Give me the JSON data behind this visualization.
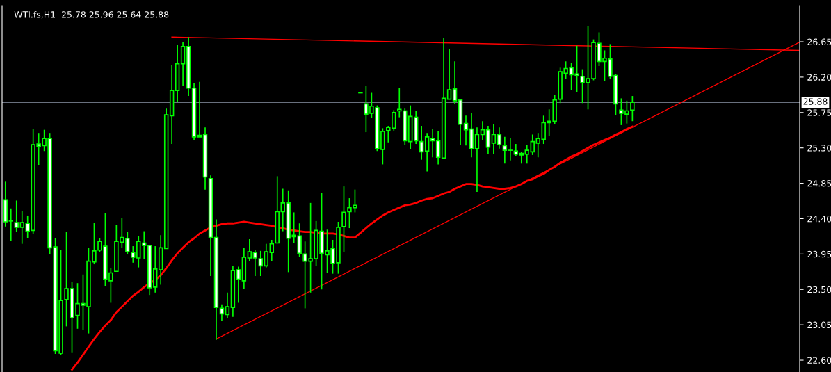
{
  "chart_data": {
    "type": "candlestick",
    "title": "WTI.fs,H1  25.78 25.96 25.64 25.88",
    "categories": [
      null,
      null,
      null,
      null,
      null,
      null,
      null,
      null,
      null,
      null,
      null,
      null,
      null,
      null,
      null,
      null,
      null,
      null,
      null,
      null,
      null,
      null,
      null,
      null,
      null,
      null,
      null,
      null,
      null,
      null,
      null,
      null,
      null,
      null,
      null,
      null,
      null,
      null,
      null,
      null,
      null,
      null,
      null,
      null,
      null,
      null,
      null,
      null,
      null,
      null,
      null,
      null,
      null,
      null,
      null,
      null,
      null,
      null,
      null,
      null,
      null,
      null,
      null,
      null,
      null,
      null,
      null,
      null,
      null,
      null,
      null,
      null,
      null,
      null,
      null,
      null,
      null,
      null,
      null,
      null,
      null,
      null,
      null,
      null,
      null,
      null,
      null,
      null,
      null,
      null,
      null,
      null,
      null,
      null,
      null,
      null,
      null,
      null,
      null,
      null,
      null,
      null,
      null,
      null,
      null,
      null,
      null,
      null,
      null,
      null,
      null,
      null,
      null,
      null,
      null,
      null,
      null,
      null,
      null,
      null,
      null,
      null,
      null,
      null,
      null,
      null,
      null,
      null,
      null,
      null,
      null,
      null,
      null,
      null,
      null,
      null,
      null,
      null,
      null,
      null,
      null,
      null,
      null,
      null
    ],
    "series": [
      {
        "type": "candlestick",
        "color": "#00ff00",
        "ohlc": [
          [
            24.64,
            24.87,
            24.3,
            24.36
          ],
          [
            24.37,
            24.53,
            24.12,
            24.37
          ],
          [
            24.35,
            24.63,
            24.23,
            24.29
          ],
          [
            24.29,
            24.5,
            24.08,
            24.35
          ],
          [
            24.34,
            24.44,
            24.15,
            24.24
          ],
          [
            24.25,
            25.54,
            24.21,
            25.34
          ],
          [
            25.35,
            25.49,
            25.08,
            25.32
          ],
          [
            25.33,
            25.53,
            25.26,
            25.42
          ],
          [
            25.42,
            25.49,
            23.95,
            24.03
          ],
          [
            24.04,
            24.15,
            22.68,
            22.72
          ],
          [
            22.69,
            24.0,
            22.67,
            23.36
          ],
          [
            23.37,
            24.23,
            23.03,
            23.51
          ],
          [
            23.51,
            23.6,
            22.7,
            23.14
          ],
          [
            23.17,
            23.58,
            23.0,
            23.32
          ],
          [
            23.32,
            23.69,
            22.98,
            23.3
          ],
          [
            23.28,
            24.03,
            22.94,
            23.86
          ],
          [
            23.85,
            24.35,
            23.82,
            23.99
          ],
          [
            24.0,
            24.15,
            23.98,
            24.11
          ],
          [
            24.05,
            24.47,
            23.54,
            23.63
          ],
          [
            23.61,
            23.77,
            23.33,
            23.71
          ],
          [
            23.73,
            24.32,
            23.73,
            24.11
          ],
          [
            24.1,
            24.41,
            24.03,
            24.16
          ],
          [
            24.15,
            24.23,
            23.95,
            23.98
          ],
          [
            23.97,
            24.05,
            23.84,
            23.91
          ],
          [
            23.9,
            24.18,
            23.78,
            24.11
          ],
          [
            24.09,
            24.24,
            23.89,
            24.06
          ],
          [
            24.06,
            24.06,
            23.43,
            23.52
          ],
          [
            23.53,
            24.05,
            23.46,
            23.76
          ],
          [
            23.75,
            24.19,
            23.56,
            24.03
          ],
          [
            24.02,
            25.8,
            24.02,
            25.72
          ],
          [
            25.71,
            26.35,
            25.35,
            26.03
          ],
          [
            26.03,
            26.61,
            25.89,
            26.37
          ],
          [
            26.37,
            26.65,
            26.09,
            26.59
          ],
          [
            26.59,
            26.71,
            25.96,
            26.06
          ],
          [
            26.06,
            26.12,
            25.4,
            25.44
          ],
          [
            25.46,
            26.14,
            25.44,
            25.44
          ],
          [
            25.47,
            25.56,
            24.77,
            24.93
          ],
          [
            24.91,
            24.95,
            23.67,
            24.16
          ],
          [
            24.16,
            24.39,
            22.86,
            23.27
          ],
          [
            23.26,
            23.31,
            23.1,
            23.19
          ],
          [
            23.18,
            23.46,
            23.14,
            23.28
          ],
          [
            23.27,
            23.8,
            23.15,
            23.74
          ],
          [
            23.75,
            23.79,
            23.33,
            23.63
          ],
          [
            23.61,
            24.03,
            23.51,
            23.91
          ],
          [
            23.9,
            24.14,
            23.86,
            23.98
          ],
          [
            23.97,
            24.0,
            23.67,
            23.9
          ],
          [
            23.89,
            23.99,
            23.67,
            23.8
          ],
          [
            23.8,
            24.08,
            23.78,
            23.98
          ],
          [
            23.97,
            24.13,
            23.86,
            24.08
          ],
          [
            24.09,
            24.94,
            24.09,
            24.49
          ],
          [
            24.49,
            24.78,
            24.24,
            24.6
          ],
          [
            24.6,
            24.76,
            23.72,
            24.15
          ],
          [
            24.17,
            24.48,
            24.09,
            24.19
          ],
          [
            24.18,
            24.34,
            23.91,
            23.96
          ],
          [
            23.95,
            24.11,
            23.26,
            23.86
          ],
          [
            23.86,
            24.6,
            23.46,
            23.89
          ],
          [
            23.89,
            24.37,
            23.8,
            24.25
          ],
          [
            24.24,
            24.73,
            23.5,
            23.96
          ],
          [
            23.94,
            24.26,
            23.71,
            23.99
          ],
          [
            24.02,
            24.13,
            23.7,
            23.83
          ],
          [
            23.84,
            24.36,
            23.7,
            24.29
          ],
          [
            24.3,
            24.81,
            23.98,
            24.48
          ],
          [
            24.49,
            24.66,
            24.28,
            24.54
          ],
          [
            24.54,
            24.77,
            24.48,
            24.57
          ],
          [
            26.0,
            26.0,
            26.0,
            26.0
          ],
          [
            25.86,
            26.09,
            25.5,
            25.73
          ],
          [
            25.74,
            26.0,
            25.68,
            25.83
          ],
          [
            25.81,
            25.84,
            25.26,
            25.29
          ],
          [
            25.28,
            25.55,
            25.09,
            25.51
          ],
          [
            25.52,
            25.58,
            25.37,
            25.56
          ],
          [
            25.55,
            25.78,
            25.52,
            25.75
          ],
          [
            25.77,
            26.06,
            25.69,
            25.79
          ],
          [
            25.77,
            25.8,
            25.34,
            25.39
          ],
          [
            25.38,
            25.84,
            25.28,
            25.7
          ],
          [
            25.69,
            25.77,
            25.35,
            25.39
          ],
          [
            25.38,
            25.58,
            25.15,
            25.25
          ],
          [
            25.26,
            25.49,
            25.0,
            25.44
          ],
          [
            25.42,
            25.54,
            25.18,
            25.39
          ],
          [
            25.39,
            25.51,
            25.09,
            25.18
          ],
          [
            25.17,
            26.7,
            25.17,
            25.93
          ],
          [
            25.92,
            26.56,
            25.92,
            26.04
          ],
          [
            26.05,
            26.4,
            25.86,
            25.9
          ],
          [
            25.91,
            25.92,
            25.34,
            25.6
          ],
          [
            25.61,
            25.71,
            25.33,
            25.53
          ],
          [
            25.54,
            25.74,
            25.18,
            25.29
          ],
          [
            25.29,
            25.56,
            24.74,
            25.47
          ],
          [
            25.47,
            25.64,
            25.4,
            25.53
          ],
          [
            25.53,
            25.58,
            25.22,
            25.31
          ],
          [
            25.36,
            25.6,
            25.22,
            25.47
          ],
          [
            25.47,
            25.56,
            25.29,
            25.34
          ],
          [
            25.33,
            25.44,
            25.1,
            25.27
          ],
          [
            25.27,
            25.42,
            25.14,
            25.27
          ],
          [
            25.26,
            25.35,
            25.2,
            25.22
          ],
          [
            25.23,
            25.25,
            25.1,
            25.21
          ],
          [
            25.22,
            25.34,
            25.1,
            25.27
          ],
          [
            25.25,
            25.47,
            25.21,
            25.38
          ],
          [
            25.36,
            25.49,
            25.18,
            25.42
          ],
          [
            25.41,
            25.71,
            25.35,
            25.62
          ],
          [
            25.62,
            25.79,
            25.45,
            25.64
          ],
          [
            25.64,
            25.97,
            25.6,
            25.91
          ],
          [
            25.92,
            26.32,
            25.87,
            26.27
          ],
          [
            26.25,
            26.4,
            26.18,
            26.31
          ],
          [
            26.32,
            26.38,
            26.04,
            26.23
          ],
          [
            26.24,
            26.6,
            26.01,
            26.22
          ],
          [
            26.21,
            26.3,
            25.87,
            26.13
          ],
          [
            26.13,
            26.85,
            25.79,
            26.18
          ],
          [
            26.18,
            26.68,
            26.16,
            26.64
          ],
          [
            26.63,
            26.77,
            26.34,
            26.4
          ],
          [
            26.4,
            26.54,
            26.15,
            26.44
          ],
          [
            26.43,
            26.62,
            26.18,
            26.21
          ],
          [
            26.22,
            26.24,
            25.72,
            25.86
          ],
          [
            25.78,
            25.93,
            25.59,
            25.74
          ],
          [
            25.73,
            25.9,
            25.61,
            25.77
          ],
          [
            25.78,
            25.96,
            25.64,
            25.88
          ],
          null,
          null,
          null,
          null,
          null,
          null,
          null,
          null,
          null,
          null,
          null,
          null,
          null,
          null,
          null,
          null,
          null,
          null,
          null,
          null,
          null,
          null,
          null,
          null,
          null,
          null,
          null,
          null,
          null,
          null
        ]
      },
      {
        "type": "line",
        "color": "#ff0000",
        "values": [
          null,
          null,
          null,
          null,
          null,
          null,
          null,
          null,
          null,
          null,
          null,
          null,
          22.48,
          22.57,
          22.67,
          22.77,
          22.87,
          22.96,
          23.04,
          23.11,
          23.21,
          23.28,
          23.35,
          23.42,
          23.47,
          23.53,
          23.58,
          23.62,
          23.68,
          23.77,
          23.87,
          23.96,
          24.03,
          24.1,
          24.15,
          24.21,
          24.25,
          24.29,
          24.31,
          24.33,
          24.34,
          24.34,
          24.35,
          24.36,
          24.35,
          24.34,
          24.33,
          24.32,
          24.31,
          24.29,
          24.28,
          24.26,
          24.25,
          24.24,
          24.23,
          24.23,
          24.22,
          24.21,
          24.21,
          24.21,
          24.2,
          24.18,
          24.16,
          24.16,
          24.22,
          24.28,
          24.34,
          24.39,
          24.44,
          24.48,
          24.51,
          24.54,
          24.57,
          24.58,
          24.6,
          24.63,
          24.65,
          24.66,
          24.69,
          24.72,
          24.74,
          24.78,
          24.81,
          24.84,
          24.84,
          24.83,
          24.81,
          24.8,
          24.79,
          24.78,
          24.78,
          24.79,
          24.81,
          24.84,
          24.88,
          24.9,
          24.94,
          24.97,
          25.02,
          25.06,
          25.11,
          25.15,
          25.19,
          25.22,
          25.26,
          25.3,
          25.34,
          25.37,
          25.4,
          25.43,
          25.47,
          25.5,
          25.54,
          25.57,
          null,
          null,
          null,
          null,
          null,
          null,
          null,
          null,
          null,
          null,
          null,
          null,
          null,
          null,
          null,
          null,
          null,
          null,
          null,
          null,
          null,
          null,
          null,
          null,
          null,
          null,
          null,
          null,
          null,
          null
        ]
      },
      {
        "type": "line",
        "color": "#ff0000",
        "values": [
          null,
          null,
          null,
          null,
          null,
          null,
          null,
          null,
          null,
          null,
          null,
          null,
          null,
          null,
          null,
          null,
          null,
          null,
          null,
          null,
          null,
          null,
          null,
          null,
          null,
          null,
          null,
          null,
          null,
          null,
          26.71,
          null,
          null,
          null,
          null,
          null,
          null,
          null,
          null,
          null,
          null,
          null,
          null,
          null,
          null,
          null,
          null,
          null,
          null,
          null,
          null,
          null,
          null,
          null,
          null,
          null,
          null,
          null,
          null,
          null,
          null,
          null,
          null,
          null,
          null,
          null,
          null,
          null,
          null,
          null,
          null,
          null,
          null,
          null,
          null,
          null,
          null,
          null,
          null,
          null,
          null,
          null,
          null,
          null,
          null,
          null,
          null,
          null,
          null,
          null,
          null,
          null,
          null,
          null,
          null,
          null,
          null,
          null,
          null,
          null,
          null,
          null,
          null,
          null,
          null,
          null,
          null,
          null,
          null,
          null,
          null,
          null,
          null,
          null,
          null,
          null,
          null,
          null,
          null,
          null,
          null,
          null,
          null,
          null,
          null,
          null,
          null,
          null,
          null,
          null,
          null,
          null,
          null,
          null,
          null,
          null,
          null,
          null,
          null,
          null,
          null,
          null,
          null,
          26.54
        ]
      },
      {
        "type": "line",
        "color": "#ff0000",
        "values": [
          null,
          null,
          null,
          null,
          null,
          null,
          null,
          null,
          null,
          null,
          null,
          null,
          null,
          null,
          null,
          null,
          null,
          null,
          null,
          null,
          null,
          null,
          null,
          null,
          null,
          null,
          null,
          null,
          null,
          null,
          null,
          null,
          null,
          null,
          null,
          null,
          null,
          null,
          22.87,
          null,
          null,
          null,
          null,
          null,
          null,
          null,
          null,
          null,
          null,
          null,
          null,
          null,
          null,
          null,
          null,
          null,
          null,
          null,
          null,
          null,
          null,
          null,
          null,
          null,
          null,
          null,
          null,
          null,
          null,
          null,
          null,
          null,
          null,
          null,
          null,
          null,
          null,
          null,
          null,
          null,
          null,
          null,
          null,
          null,
          null,
          null,
          null,
          null,
          null,
          null,
          null,
          null,
          null,
          null,
          null,
          null,
          null,
          null,
          null,
          null,
          null,
          null,
          null,
          null,
          null,
          null,
          null,
          null,
          null,
          null,
          null,
          null,
          null,
          null,
          null,
          null,
          null,
          null,
          null,
          null,
          null,
          null,
          null,
          null,
          null,
          null,
          null,
          null,
          null,
          null,
          null,
          null,
          null,
          null,
          null,
          null,
          null,
          null,
          null,
          null,
          null,
          null,
          null,
          26.64
        ]
      }
    ],
    "ylim": [
      22.45,
      27.11
    ],
    "yticks": [
      {
        "value": 22.6,
        "label": "22.60"
      },
      {
        "value": 23.05,
        "label": "23.05"
      },
      {
        "value": 23.5,
        "label": "23.50"
      },
      {
        "value": 23.95,
        "label": "23.95"
      },
      {
        "value": 24.4,
        "label": "24.40"
      },
      {
        "value": 24.85,
        "label": "24.85"
      },
      {
        "value": 25.3,
        "label": "25.30"
      },
      {
        "value": 25.75,
        "label": "25.75"
      },
      {
        "value": 26.2,
        "label": "26.20"
      },
      {
        "value": 26.65,
        "label": "26.65"
      }
    ],
    "ref_lines": [
      {
        "axis": "y",
        "value": 25.88,
        "label": "25.88",
        "color": "#8c96a8"
      }
    ],
    "tick_labels": "y",
    "grid": false
  }
}
